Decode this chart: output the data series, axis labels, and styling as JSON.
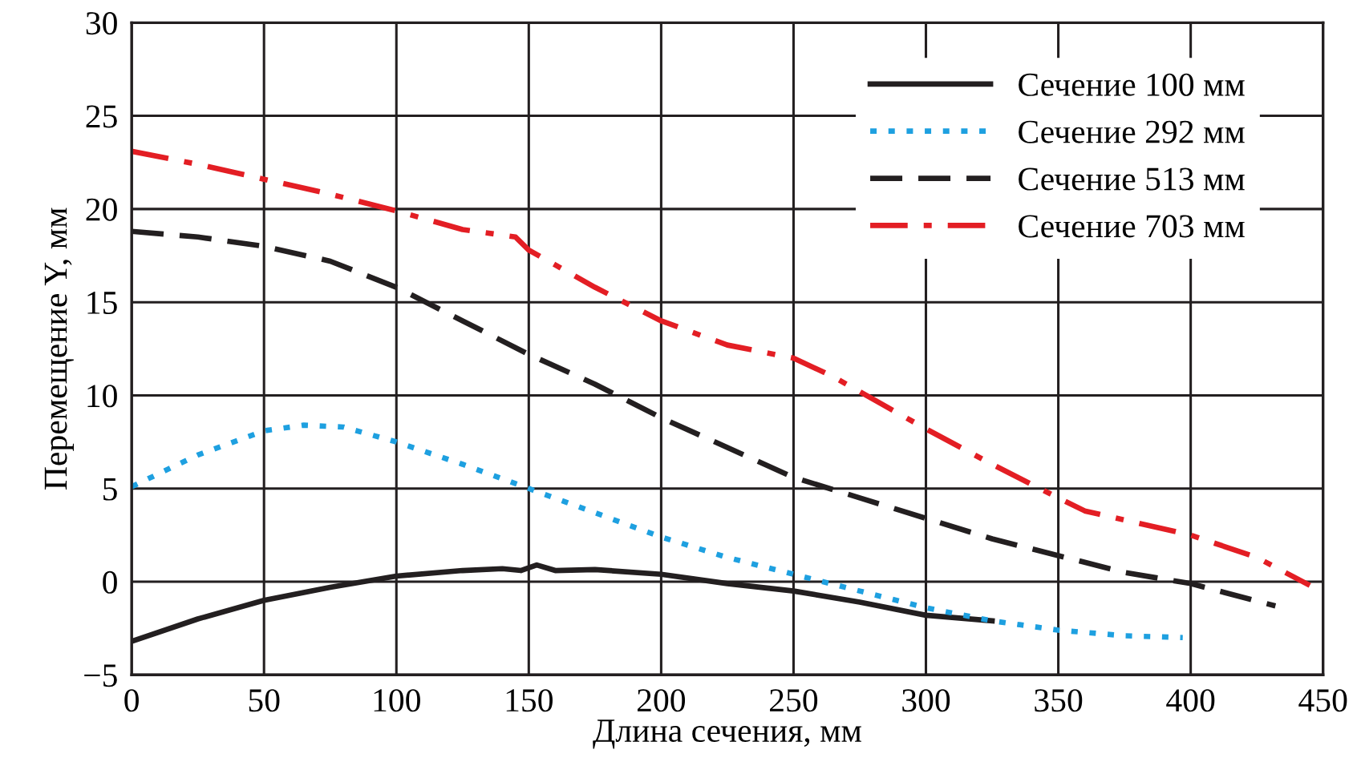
{
  "chart_data": {
    "type": "line",
    "xlabel": "Длина сечения, мм",
    "ylabel": "Перемещение Y, мм",
    "xlim": [
      0,
      450
    ],
    "xticks": [
      0,
      50,
      100,
      150,
      200,
      250,
      300,
      350,
      400,
      450
    ],
    "ylim": [
      -5,
      30
    ],
    "yticks": [
      -5,
      0,
      5,
      10,
      15,
      20,
      25,
      30
    ],
    "grid": true,
    "legend": "top right",
    "marker": "none",
    "series": [
      {
        "name": "Сечение 100 мм",
        "color": "#231f20",
        "line_style": "solid",
        "x": [
          0,
          25,
          50,
          75,
          100,
          125,
          140,
          147,
          153,
          160,
          175,
          200,
          225,
          250,
          275,
          300,
          325
        ],
        "values": [
          -3.2,
          -2.0,
          -1.0,
          -0.3,
          0.3,
          0.6,
          0.7,
          0.6,
          0.9,
          0.6,
          0.65,
          0.4,
          -0.1,
          -0.5,
          -1.1,
          -1.8,
          -2.1
        ]
      },
      {
        "name": "Сечение 292 мм",
        "color": "#1ea0e0",
        "line_style": "dotted",
        "x": [
          0,
          25,
          50,
          65,
          80,
          100,
          125,
          150,
          175,
          200,
          225,
          250,
          275,
          300,
          325,
          350,
          375,
          397
        ],
        "values": [
          5.1,
          6.8,
          8.1,
          8.4,
          8.3,
          7.5,
          6.3,
          5.0,
          3.7,
          2.4,
          1.3,
          0.4,
          -0.5,
          -1.4,
          -2.1,
          -2.6,
          -2.9,
          -3.0
        ]
      },
      {
        "name": "Сечение 513 мм",
        "color": "#231f20",
        "line_style": "dashed",
        "x": [
          0,
          25,
          50,
          75,
          100,
          125,
          150,
          175,
          200,
          225,
          250,
          275,
          300,
          325,
          350,
          375,
          400,
          432
        ],
        "values": [
          18.8,
          18.5,
          18.0,
          17.2,
          15.8,
          14.0,
          12.2,
          10.6,
          8.8,
          7.2,
          5.6,
          4.5,
          3.4,
          2.3,
          1.4,
          0.5,
          -0.1,
          -1.3
        ]
      },
      {
        "name": "Сечение 703 мм",
        "color": "#e31e24",
        "line_style": "dashdot",
        "x": [
          0,
          25,
          50,
          75,
          100,
          125,
          145,
          150,
          175,
          200,
          225,
          250,
          265,
          300,
          325,
          350,
          360,
          400,
          425,
          445
        ],
        "values": [
          23.1,
          22.4,
          21.6,
          20.8,
          19.9,
          18.9,
          18.5,
          17.8,
          15.8,
          14.0,
          12.7,
          12.0,
          11.0,
          8.2,
          6.3,
          4.5,
          3.8,
          2.5,
          1.3,
          -0.2
        ]
      }
    ]
  }
}
